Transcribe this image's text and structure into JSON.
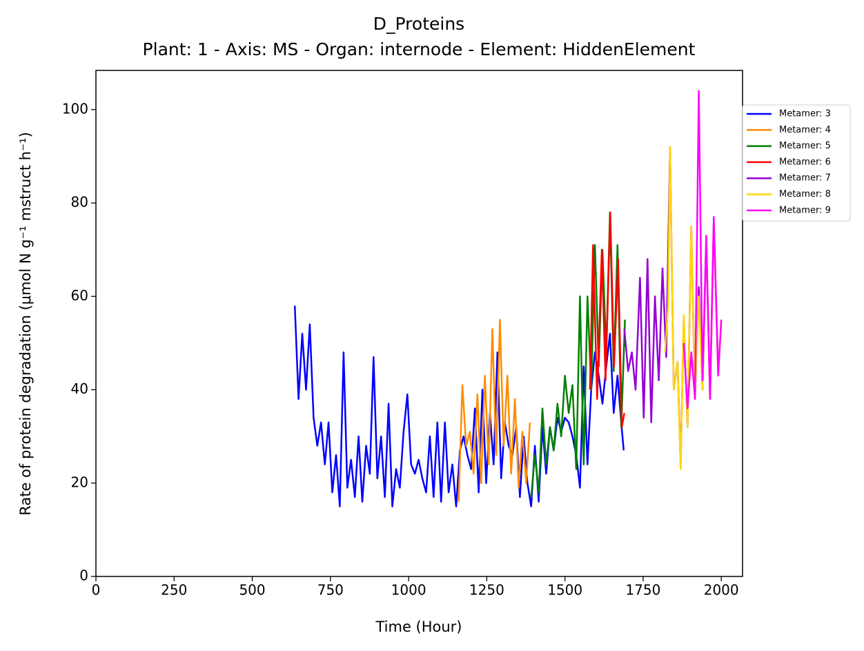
{
  "chart_data": {
    "type": "line",
    "title": "D_Proteins",
    "subtitle": "Plant: 1 - Axis: MS - Organ: internode - Element: HiddenElement",
    "x_label": "Time (Hour)",
    "y_label": "Rate of protein degradation (μmol N g⁻¹ mstruct h⁻¹)",
    "xlim": [
      0,
      2068
    ],
    "ylim": [
      0,
      108.4
    ],
    "xticks": [
      0,
      250,
      500,
      750,
      1000,
      1250,
      1500,
      1750,
      2000
    ],
    "yticks": [
      0,
      20,
      40,
      60,
      80,
      100
    ],
    "grid": false,
    "legend": "outside upper right",
    "series": [
      {
        "name": "Metamer: 3",
        "color": "#0000ff",
        "x": [
          636,
          648,
          660,
          672,
          684,
          696,
          708,
          720,
          732,
          744,
          756,
          768,
          780,
          792,
          804,
          816,
          828,
          840,
          852,
          864,
          876,
          888,
          900,
          912,
          924,
          936,
          948,
          960,
          972,
          984,
          996,
          1008,
          1020,
          1032,
          1044,
          1056,
          1068,
          1080,
          1092,
          1104,
          1116,
          1128,
          1140,
          1152,
          1164,
          1176,
          1188,
          1200,
          1212,
          1224,
          1236,
          1248,
          1260,
          1272,
          1284,
          1296,
          1308,
          1320,
          1332,
          1344,
          1356,
          1368,
          1380,
          1392,
          1404,
          1416,
          1428,
          1440,
          1452,
          1464,
          1476,
          1488,
          1500,
          1512,
          1524,
          1536,
          1548,
          1560,
          1572,
          1584,
          1596,
          1608,
          1620,
          1632,
          1644,
          1656,
          1668,
          1680,
          1688
        ],
        "values": [
          58,
          38,
          52,
          40,
          54,
          34,
          28,
          33,
          24,
          33,
          18,
          26,
          15,
          48,
          19,
          25,
          17,
          30,
          16,
          28,
          22,
          47,
          21,
          30,
          17,
          37,
          15,
          23,
          19,
          31,
          39,
          24,
          22,
          25,
          21,
          18,
          30,
          17,
          33,
          16,
          33,
          18,
          24,
          15,
          27,
          30,
          26,
          23,
          36,
          18,
          40,
          20,
          35,
          24,
          48,
          21,
          33,
          28,
          26,
          32,
          17,
          30,
          20,
          15,
          28,
          16,
          32,
          22,
          32,
          27,
          34,
          31,
          34,
          33,
          30,
          26,
          19,
          45,
          24,
          40,
          48,
          43,
          37,
          45,
          52,
          35,
          43,
          33,
          27
        ]
      },
      {
        "name": "Metamer: 4",
        "color": "#ff8c00",
        "x": [
          1160,
          1172,
          1184,
          1196,
          1208,
          1220,
          1232,
          1244,
          1256,
          1268,
          1280,
          1292,
          1304,
          1316,
          1328,
          1340,
          1352,
          1364,
          1376,
          1388
        ],
        "values": [
          16,
          41,
          28,
          31,
          22,
          39,
          20,
          43,
          24,
          53,
          26,
          55,
          28,
          43,
          22,
          38,
          19,
          31,
          20,
          33
        ]
      },
      {
        "name": "Metamer: 5",
        "color": "#008000",
        "x": [
          1392,
          1404,
          1416,
          1428,
          1440,
          1452,
          1464,
          1476,
          1488,
          1500,
          1512,
          1524,
          1536,
          1548,
          1560,
          1572,
          1584,
          1596,
          1608,
          1620,
          1632,
          1644,
          1656,
          1668,
          1680,
          1692
        ],
        "values": [
          17,
          26,
          18,
          36,
          24,
          32,
          27,
          37,
          30,
          43,
          35,
          41,
          23,
          60,
          24,
          60,
          40,
          71,
          45,
          70,
          48,
          78,
          44,
          71,
          32,
          55
        ]
      },
      {
        "name": "Metamer: 6",
        "color": "#ff0000",
        "x": [
          1580,
          1590,
          1603,
          1618,
          1630,
          1645,
          1657,
          1670,
          1682,
          1690
        ],
        "values": [
          40,
          71,
          38,
          70,
          42,
          78,
          45,
          68,
          32,
          35
        ]
      },
      {
        "name": "Metamer: 7",
        "color": "#9400d3",
        "x": [
          1690,
          1702,
          1714,
          1726,
          1740,
          1752,
          1764,
          1776,
          1788,
          1800,
          1812,
          1824,
          1836,
          1848,
          1860,
          1870,
          1880,
          1892,
          1904,
          1916,
          1928,
          1940,
          1952,
          1964,
          1976,
          1990
        ],
        "values": [
          53,
          44,
          48,
          40,
          64,
          34,
          68,
          33,
          60,
          42,
          66,
          47,
          92,
          40,
          46,
          24,
          55,
          32,
          75,
          38,
          62,
          40,
          72,
          38,
          76,
          44
        ]
      },
      {
        "name": "Metamer: 8",
        "color": "#ffd700",
        "x": [
          1820,
          1830,
          1836,
          1848,
          1860,
          1870,
          1880,
          1892,
          1904,
          1916,
          1928,
          1940,
          1952,
          1964,
          1976,
          1990,
          2000
        ],
        "values": [
          48,
          58,
          92,
          40,
          46,
          23,
          56,
          32,
          75,
          38,
          60,
          40,
          73,
          38,
          76,
          43,
          55
        ]
      },
      {
        "name": "Metamer: 9",
        "color": "#ff00ff",
        "x": [
          1880,
          1892,
          1904,
          1916,
          1928,
          1940,
          1952,
          1964,
          1976,
          1990,
          2000
        ],
        "values": [
          50,
          36,
          48,
          38,
          104,
          42,
          73,
          38,
          77,
          43,
          55
        ]
      }
    ]
  }
}
